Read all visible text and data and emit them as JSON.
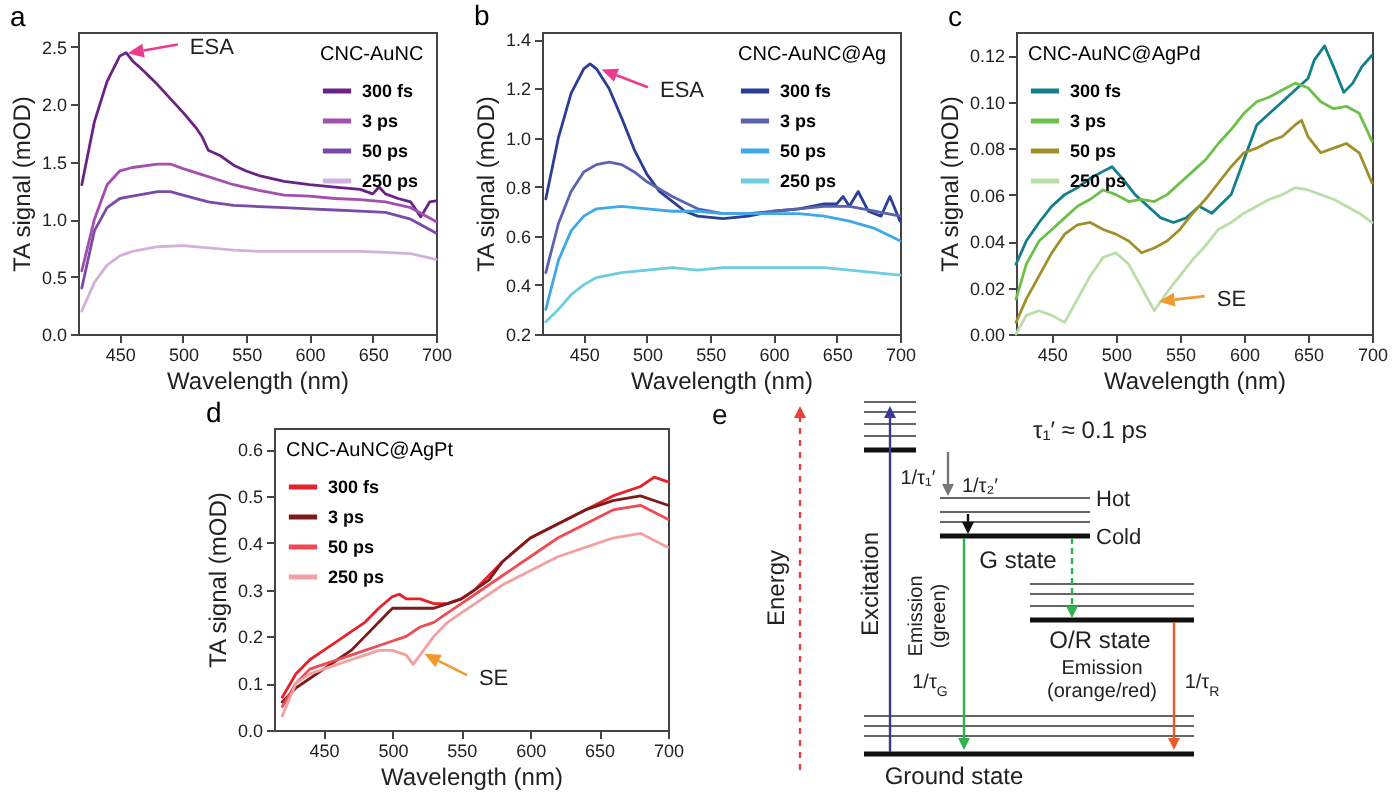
{
  "chart_data": [
    {
      "type": "line",
      "title": "a",
      "xlabel": "Wavelength (nm)",
      "ylabel": "TA signal (mOD)",
      "legend_title": "CNC-AuNC",
      "legend": "top right",
      "xlim": [
        417,
        700
      ],
      "ylim": [
        0,
        2.63
      ],
      "xticks": [
        450,
        500,
        550,
        600,
        650,
        700
      ],
      "yticks": [
        {
          "value": 0,
          "label": "0.0"
        },
        0.5,
        {
          "value": 1,
          "label": "1.0"
        },
        1.5,
        {
          "value": 2,
          "label": "2.0"
        },
        2.5
      ],
      "annotations": [
        {
          "text": "ESA",
          "x": 458,
          "y": 2.4
        }
      ],
      "series": [
        {
          "name": "300 fs",
          "color": "#6b2285",
          "x": [
            420,
            430,
            440,
            450,
            455,
            460,
            470,
            480,
            490,
            500,
            510,
            515,
            520,
            530,
            540,
            550,
            560,
            580,
            600,
            620,
            640,
            650,
            655,
            660,
            670,
            680,
            688,
            695,
            700
          ],
          "values": [
            1.3,
            1.85,
            2.2,
            2.42,
            2.45,
            2.38,
            2.28,
            2.17,
            2.05,
            1.93,
            1.8,
            1.72,
            1.6,
            1.55,
            1.47,
            1.42,
            1.38,
            1.33,
            1.3,
            1.28,
            1.26,
            1.22,
            1.28,
            1.22,
            1.18,
            1.15,
            1.02,
            1.15,
            1.16
          ]
        },
        {
          "name": "3 ps",
          "color": "#a24fae",
          "x": [
            420,
            430,
            440,
            450,
            460,
            480,
            490,
            500,
            520,
            540,
            560,
            580,
            600,
            620,
            640,
            660,
            680,
            700
          ],
          "values": [
            0.55,
            1.0,
            1.3,
            1.42,
            1.45,
            1.48,
            1.48,
            1.44,
            1.37,
            1.3,
            1.25,
            1.21,
            1.2,
            1.18,
            1.17,
            1.15,
            1.1,
            0.98
          ]
        },
        {
          "name": "50 ps",
          "color": "#7a4aa8",
          "x": [
            420,
            430,
            440,
            450,
            460,
            480,
            490,
            500,
            520,
            540,
            560,
            580,
            600,
            620,
            640,
            660,
            680,
            700
          ],
          "values": [
            0.4,
            0.9,
            1.1,
            1.18,
            1.2,
            1.24,
            1.24,
            1.21,
            1.15,
            1.12,
            1.11,
            1.1,
            1.09,
            1.08,
            1.07,
            1.06,
            1.0,
            0.88
          ]
        },
        {
          "name": "250 ps",
          "color": "#d2b2dc",
          "x": [
            420,
            430,
            440,
            450,
            460,
            480,
            500,
            520,
            540,
            560,
            600,
            640,
            660,
            680,
            700
          ],
          "values": [
            0.2,
            0.45,
            0.6,
            0.68,
            0.72,
            0.76,
            0.77,
            0.75,
            0.73,
            0.72,
            0.72,
            0.72,
            0.71,
            0.7,
            0.65
          ]
        }
      ]
    },
    {
      "type": "line",
      "title": "b",
      "xlabel": "Wavelength (nm)",
      "ylabel": "TA signal (mOD)",
      "legend_title": "CNC-AuNC@Ag",
      "legend": "top right",
      "xlim": [
        417,
        700
      ],
      "ylim": [
        0.2,
        1.43
      ],
      "xticks": [
        450,
        500,
        550,
        600,
        650,
        700
      ],
      "yticks": [
        0.2,
        0.4,
        0.6,
        0.8,
        {
          "value": 1,
          "label": "1.0"
        },
        1.2,
        1.4
      ],
      "annotations": [
        {
          "text": "ESA",
          "x": 466,
          "y": 1.27
        }
      ],
      "series": [
        {
          "name": "300 fs",
          "color": "#2b3d94",
          "x": [
            420,
            430,
            440,
            450,
            455,
            460,
            470,
            480,
            490,
            500,
            510,
            520,
            530,
            540,
            560,
            580,
            600,
            620,
            630,
            640,
            650,
            655,
            660,
            667,
            675,
            685,
            692,
            700
          ],
          "values": [
            0.75,
            1.0,
            1.18,
            1.28,
            1.3,
            1.28,
            1.2,
            1.08,
            0.95,
            0.85,
            0.78,
            0.74,
            0.7,
            0.68,
            0.67,
            0.68,
            0.7,
            0.71,
            0.72,
            0.73,
            0.73,
            0.76,
            0.72,
            0.78,
            0.7,
            0.68,
            0.76,
            0.66
          ]
        },
        {
          "name": "3 ps",
          "color": "#5b62b0",
          "x": [
            420,
            430,
            440,
            450,
            460,
            470,
            480,
            490,
            500,
            520,
            540,
            560,
            580,
            600,
            620,
            640,
            660,
            680,
            700
          ],
          "values": [
            0.45,
            0.65,
            0.78,
            0.86,
            0.89,
            0.9,
            0.89,
            0.86,
            0.82,
            0.76,
            0.71,
            0.69,
            0.69,
            0.7,
            0.71,
            0.72,
            0.72,
            0.7,
            0.68
          ]
        },
        {
          "name": "50 ps",
          "color": "#3fa8e8",
          "x": [
            420,
            430,
            440,
            450,
            460,
            480,
            500,
            520,
            540,
            560,
            580,
            600,
            620,
            640,
            660,
            680,
            700
          ],
          "values": [
            0.3,
            0.5,
            0.62,
            0.68,
            0.71,
            0.72,
            0.71,
            0.7,
            0.7,
            0.69,
            0.69,
            0.69,
            0.69,
            0.68,
            0.66,
            0.63,
            0.58
          ]
        },
        {
          "name": "250 ps",
          "color": "#6ccde0",
          "x": [
            420,
            430,
            440,
            450,
            460,
            480,
            500,
            520,
            540,
            560,
            600,
            640,
            660,
            680,
            700
          ],
          "values": [
            0.25,
            0.3,
            0.36,
            0.4,
            0.43,
            0.45,
            0.46,
            0.47,
            0.46,
            0.47,
            0.47,
            0.47,
            0.46,
            0.45,
            0.44
          ]
        }
      ]
    },
    {
      "type": "line",
      "title": "c",
      "xlabel": "Wavelength (nm)",
      "ylabel": "TA signal (mOD)",
      "legend_title": "CNC-AuNC@AgPd",
      "legend": "top left",
      "xlim": [
        422,
        700
      ],
      "ylim": [
        0,
        0.13
      ],
      "xticks": [
        450,
        500,
        550,
        600,
        650,
        700
      ],
      "yticks": [
        {
          "value": 0,
          "label": "0.00"
        },
        0.02,
        0.04,
        0.06,
        0.08,
        {
          "value": 0.1,
          "label": "0.10"
        },
        0.12
      ],
      "annotations": [
        {
          "text": "SE",
          "x": 535,
          "y": 0.012
        }
      ],
      "series": [
        {
          "name": "300 fs",
          "color": "#127f8a",
          "x": [
            422,
            430,
            440,
            450,
            460,
            470,
            480,
            490,
            497,
            505,
            515,
            525,
            535,
            545,
            555,
            565,
            575,
            590,
            600,
            610,
            620,
            630,
            640,
            650,
            655,
            663,
            670,
            678,
            685,
            692,
            700
          ],
          "values": [
            0.03,
            0.04,
            0.048,
            0.055,
            0.06,
            0.063,
            0.067,
            0.07,
            0.072,
            0.067,
            0.06,
            0.055,
            0.05,
            0.048,
            0.05,
            0.055,
            0.052,
            0.06,
            0.075,
            0.09,
            0.095,
            0.1,
            0.105,
            0.11,
            0.118,
            0.124,
            0.115,
            0.104,
            0.108,
            0.115,
            0.12
          ]
        },
        {
          "name": "3 ps",
          "color": "#6cc04a",
          "x": [
            422,
            430,
            440,
            450,
            460,
            470,
            480,
            490,
            500,
            510,
            520,
            530,
            540,
            550,
            560,
            570,
            580,
            590,
            600,
            610,
            620,
            630,
            640,
            650,
            660,
            670,
            680,
            690,
            700
          ],
          "values": [
            0.015,
            0.03,
            0.04,
            0.045,
            0.05,
            0.055,
            0.058,
            0.062,
            0.06,
            0.057,
            0.058,
            0.057,
            0.06,
            0.065,
            0.07,
            0.075,
            0.082,
            0.088,
            0.095,
            0.1,
            0.102,
            0.105,
            0.108,
            0.106,
            0.1,
            0.097,
            0.098,
            0.095,
            0.083
          ]
        },
        {
          "name": "50 ps",
          "color": "#a08f2a",
          "x": [
            422,
            430,
            440,
            450,
            460,
            470,
            480,
            490,
            500,
            510,
            520,
            530,
            540,
            550,
            560,
            570,
            580,
            590,
            600,
            610,
            620,
            630,
            640,
            645,
            650,
            660,
            670,
            680,
            690,
            700
          ],
          "values": [
            0.005,
            0.015,
            0.025,
            0.035,
            0.043,
            0.047,
            0.048,
            0.045,
            0.043,
            0.04,
            0.035,
            0.037,
            0.04,
            0.045,
            0.052,
            0.058,
            0.065,
            0.072,
            0.078,
            0.08,
            0.083,
            0.085,
            0.09,
            0.092,
            0.085,
            0.078,
            0.08,
            0.082,
            0.078,
            0.065
          ]
        },
        {
          "name": "250 ps",
          "color": "#b9dfa9",
          "x": [
            422,
            430,
            440,
            450,
            460,
            470,
            480,
            490,
            500,
            510,
            520,
            530,
            540,
            550,
            560,
            570,
            580,
            590,
            600,
            610,
            620,
            630,
            640,
            650,
            660,
            670,
            680,
            690,
            700
          ],
          "values": [
            0.0,
            0.008,
            0.01,
            0.008,
            0.005,
            0.015,
            0.025,
            0.033,
            0.035,
            0.03,
            0.02,
            0.01,
            0.018,
            0.025,
            0.032,
            0.038,
            0.045,
            0.048,
            0.052,
            0.055,
            0.058,
            0.06,
            0.063,
            0.062,
            0.06,
            0.058,
            0.055,
            0.052,
            0.048
          ]
        }
      ]
    },
    {
      "type": "line",
      "title": "d",
      "xlabel": "Wavelength (nm)",
      "ylabel": "TA signal (mOD)",
      "legend_title": "CNC-AuNC@AgPt",
      "legend": "top left",
      "xlim": [
        414,
        700
      ],
      "ylim": [
        0,
        0.645
      ],
      "xticks": [
        450,
        500,
        550,
        600,
        650,
        700
      ],
      "yticks": [
        {
          "value": 0,
          "label": "0.0"
        },
        0.1,
        0.2,
        0.3,
        0.4,
        0.5,
        0.6
      ],
      "annotations": [
        {
          "text": "SE",
          "x": 525,
          "y": 0.16
        }
      ],
      "series": [
        {
          "name": "300 fs",
          "color": "#e8202a",
          "x": [
            420,
            430,
            440,
            450,
            460,
            470,
            480,
            490,
            500,
            505,
            510,
            520,
            530,
            540,
            550,
            560,
            570,
            580,
            600,
            620,
            640,
            660,
            680,
            690,
            700
          ],
          "values": [
            0.07,
            0.12,
            0.15,
            0.17,
            0.19,
            0.21,
            0.23,
            0.26,
            0.285,
            0.29,
            0.28,
            0.28,
            0.27,
            0.27,
            0.28,
            0.3,
            0.33,
            0.36,
            0.41,
            0.44,
            0.47,
            0.5,
            0.52,
            0.54,
            0.53
          ]
        },
        {
          "name": "3 ps",
          "color": "#7d1a1a",
          "x": [
            420,
            430,
            440,
            450,
            460,
            470,
            480,
            490,
            500,
            510,
            520,
            530,
            540,
            550,
            560,
            570,
            580,
            600,
            620,
            640,
            660,
            680,
            700
          ],
          "values": [
            0.06,
            0.09,
            0.11,
            0.13,
            0.15,
            0.17,
            0.2,
            0.23,
            0.26,
            0.26,
            0.26,
            0.26,
            0.27,
            0.28,
            0.3,
            0.32,
            0.36,
            0.41,
            0.44,
            0.47,
            0.49,
            0.5,
            0.48
          ]
        },
        {
          "name": "50 ps",
          "color": "#ee4b52",
          "x": [
            420,
            430,
            440,
            450,
            460,
            470,
            480,
            490,
            500,
            510,
            520,
            530,
            540,
            550,
            560,
            570,
            580,
            600,
            620,
            640,
            660,
            680,
            700
          ],
          "values": [
            0.05,
            0.1,
            0.13,
            0.14,
            0.15,
            0.16,
            0.17,
            0.18,
            0.19,
            0.2,
            0.22,
            0.23,
            0.25,
            0.27,
            0.29,
            0.31,
            0.33,
            0.37,
            0.41,
            0.44,
            0.47,
            0.48,
            0.45
          ]
        },
        {
          "name": "250 ps",
          "color": "#f4a0a0",
          "x": [
            420,
            430,
            440,
            450,
            460,
            470,
            480,
            490,
            500,
            510,
            515,
            520,
            530,
            540,
            550,
            560,
            570,
            580,
            600,
            620,
            640,
            660,
            680,
            700
          ],
          "values": [
            0.03,
            0.1,
            0.12,
            0.13,
            0.14,
            0.15,
            0.16,
            0.17,
            0.17,
            0.16,
            0.14,
            0.16,
            0.2,
            0.23,
            0.25,
            0.27,
            0.29,
            0.31,
            0.34,
            0.37,
            0.39,
            0.41,
            0.42,
            0.39
          ]
        }
      ]
    },
    {
      "type": "other",
      "title": "e",
      "annotations": [
        "τ₁′ ≈ 0.1 ps",
        "Energy",
        "Excitation",
        "1/τ₁′",
        "1/τ₂′",
        "Hot",
        "Cold",
        "G state",
        "Emission (green)",
        "1/τ$_{G}$",
        "O/R state",
        "Emission (orange/red)",
        "1/τ$_{R}$",
        "Ground state"
      ]
    }
  ]
}
